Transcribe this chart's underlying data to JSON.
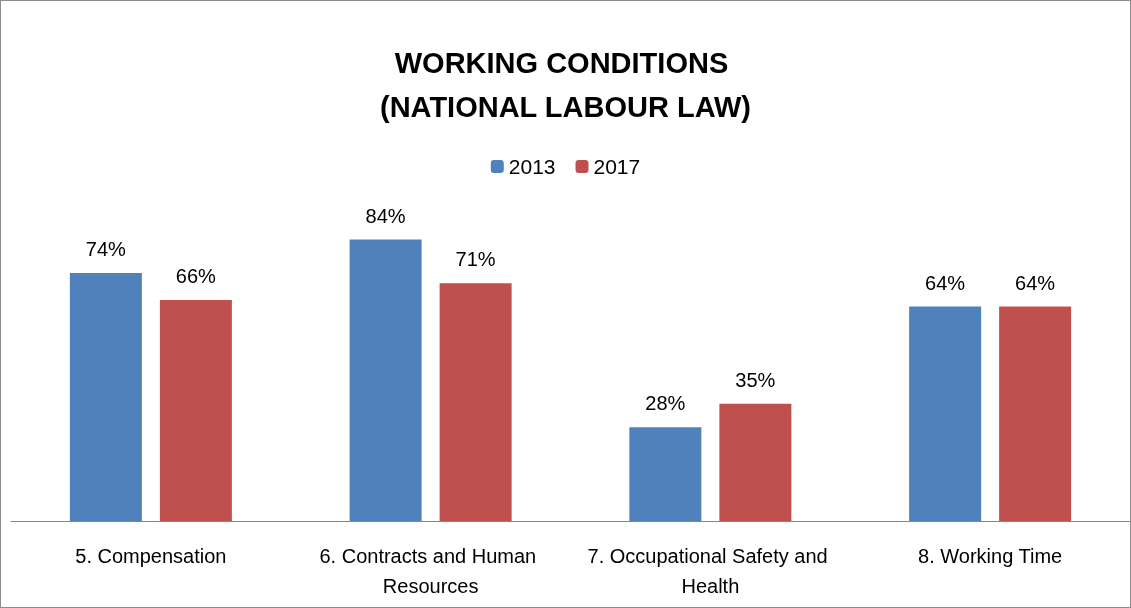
{
  "chart_data": {
    "type": "bar",
    "title": "WORKING CONDITIONS (NATIONAL LABOUR LAW)",
    "categories": [
      "5. Compensation",
      "6. Contracts and Human Resources",
      "7. Occupational Safety and Health",
      "8. Working Time"
    ],
    "series": [
      {
        "name": "2013",
        "color": "#4f81bd",
        "values": [
          74,
          84,
          28,
          64
        ],
        "value_labels": [
          "74%",
          "84%",
          "28%",
          "64%"
        ]
      },
      {
        "name": "2017",
        "color": "#c0504d",
        "values": [
          66,
          71,
          35,
          64
        ],
        "value_labels": [
          "66%",
          "71%",
          "35%",
          "64%"
        ]
      }
    ],
    "legend": "top"
  }
}
